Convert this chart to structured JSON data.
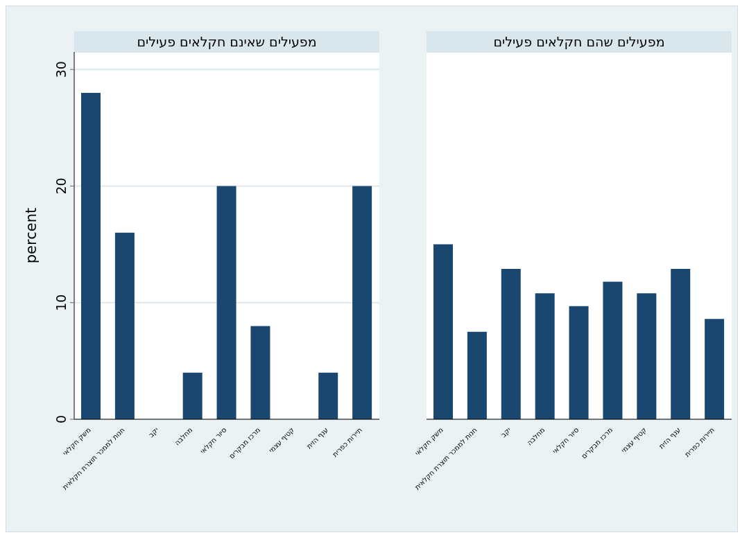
{
  "chart_data": [
    {
      "type": "bar",
      "title": "מפעילים שאינם חקלאים פעילים",
      "ylabel": "percent",
      "categories": [
        "משק חקלאי",
        "חנות לממכר תוצרת חקלאית",
        "יקב",
        "מחלבה",
        "סיור חקלאי",
        "מרכז מבקרים",
        "קטיף עצמי",
        "ענף הזית",
        "תיירות כפרית"
      ],
      "values": [
        28,
        16,
        0,
        4,
        20,
        8,
        0,
        4,
        20
      ],
      "color": "#1a476f",
      "ylim": [
        0,
        31.5
      ],
      "yticks": [
        0,
        10,
        20,
        30
      ],
      "grid": "y"
    },
    {
      "type": "bar",
      "title": "מפעילים שהם חקלאים פעילים",
      "categories": [
        "משק חקלאי",
        "חנות לממכר תוצרת חקלאית",
        "יקב",
        "מחלבה",
        "סיור חקלאי",
        "מרכז מבקרים",
        "קטיף עצמי",
        "ענף הזית",
        "תיירות כפרית"
      ],
      "values": [
        15,
        7.5,
        12.9,
        10.8,
        9.7,
        11.8,
        10.8,
        12.9,
        8.6
      ],
      "color": "#1a476f",
      "ylim": [
        0,
        31.5
      ],
      "yticks": [
        0,
        10,
        20,
        30
      ],
      "grid": "y",
      "tick_labels": "x"
    }
  ]
}
